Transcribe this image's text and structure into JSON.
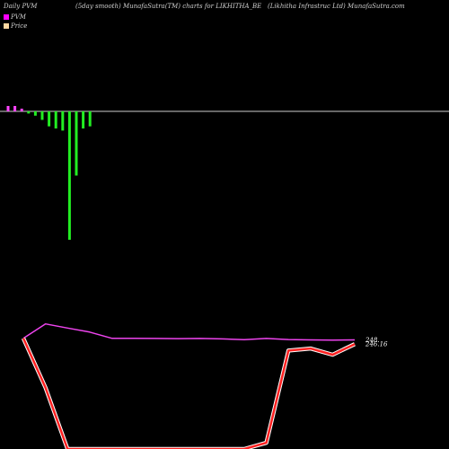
{
  "header": {
    "left": "Daily PVM",
    "center": "(5day smooth) MunafaSutra(TM) charts for LIKHITHA_BE",
    "right": "(Likhitha  Infrastruc Ltd) MunafaSutra.com"
  },
  "legend": [
    {
      "label": "PVM",
      "color": "#ff00ff"
    },
    {
      "label": "Price",
      "color": "#ffd7a0"
    }
  ],
  "chart_data": [
    {
      "type": "bar",
      "baseline": 0,
      "ylim": [
        -60,
        2
      ],
      "values": [
        2,
        2,
        1,
        -1,
        -2,
        -4,
        -7,
        -8,
        -9,
        -60,
        -30,
        -8,
        -7
      ],
      "positive_color": "#ff44ff",
      "negative_color": "#22ee22"
    },
    {
      "type": "line",
      "series": [
        {
          "values": [
            249,
            256,
            254,
            252,
            249,
            249,
            248.9,
            248.8,
            248.9,
            248.7,
            248.3,
            248.9,
            248.4,
            248.2,
            248.1,
            248.2
          ],
          "color": "#ee44ee",
          "end_label": "248."
        },
        {
          "values": [
            249,
            225,
            195,
            195,
            195,
            195,
            195,
            195,
            195,
            195,
            195,
            198,
            243,
            244,
            241,
            246.16
          ],
          "color": "#ff2020",
          "end_label": "246.16"
        }
      ],
      "ylim": [
        195,
        262
      ]
    }
  ]
}
